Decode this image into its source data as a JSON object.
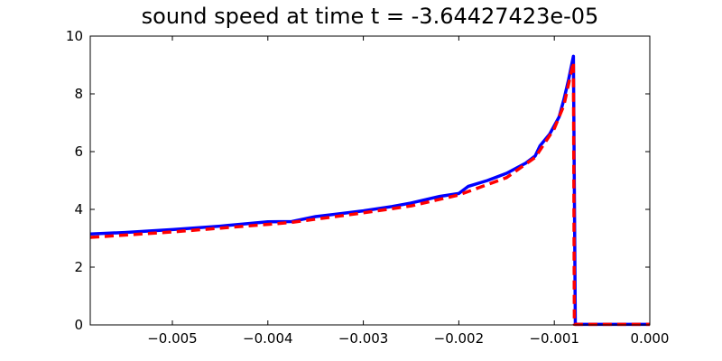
{
  "chart_data": {
    "type": "line",
    "title": "sound speed at time t = -3.64427423e-05",
    "xlim": [
      -0.00586,
      0
    ],
    "ylim": [
      0,
      10
    ],
    "xticks": [
      {
        "value": -0.005,
        "label": "−0.005"
      },
      {
        "value": -0.004,
        "label": "−0.004"
      },
      {
        "value": -0.003,
        "label": "−0.003"
      },
      {
        "value": -0.002,
        "label": "−0.002"
      },
      {
        "value": -0.001,
        "label": "−0.001"
      },
      {
        "value": 0,
        "label": "0.000"
      }
    ],
    "yticks": [
      0,
      2,
      4,
      6,
      8,
      10
    ],
    "grid": false,
    "series": [
      {
        "color": "#0000ff",
        "style": "solid",
        "x": [
          -0.00586,
          -0.0055,
          -0.005,
          -0.0045,
          -0.004,
          -0.00375,
          -0.0035,
          -0.0033,
          -0.003,
          -0.0027,
          -0.0025,
          -0.0022,
          -0.002,
          -0.0019,
          -0.0017,
          -0.0015,
          -0.0013,
          -0.0012,
          -0.00115,
          -0.00105,
          -0.00095,
          -0.0009,
          -0.00085,
          -0.0008,
          -0.00078,
          0
        ],
        "values": [
          3.15,
          3.2,
          3.3,
          3.42,
          3.57,
          3.58,
          3.75,
          3.83,
          3.95,
          4.1,
          4.22,
          4.45,
          4.55,
          4.8,
          5.0,
          5.25,
          5.6,
          5.85,
          6.2,
          6.6,
          7.2,
          7.8,
          8.5,
          9.3,
          0.02,
          0.02
        ]
      },
      {
        "color": "#ff0000",
        "style": "dashed",
        "x": [
          -0.00586,
          -0.005,
          -0.004,
          -0.00375,
          -0.003,
          -0.0025,
          -0.002,
          -0.0015,
          -0.0012,
          -0.001,
          -0.0009,
          -0.0008,
          -0.00079,
          0
        ],
        "values": [
          3.03,
          3.22,
          3.48,
          3.55,
          3.88,
          4.12,
          4.5,
          5.1,
          5.8,
          6.8,
          7.6,
          9.1,
          0.02,
          0.02
        ]
      }
    ]
  }
}
